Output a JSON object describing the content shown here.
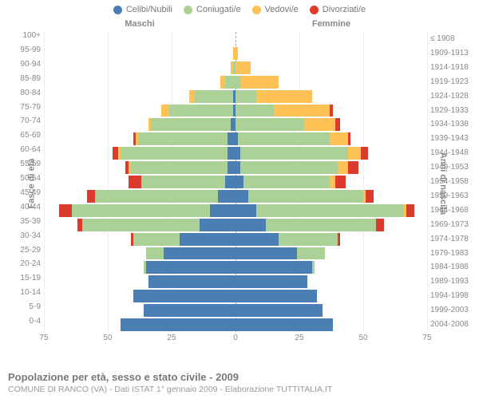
{
  "chart": {
    "type": "population-pyramid",
    "x_max": 75,
    "x_ticks": [
      75,
      50,
      25,
      0,
      25,
      50,
      75
    ],
    "legend": [
      {
        "label": "Celibi/Nubili",
        "color": "#4b7fb3"
      },
      {
        "label": "Coniugati/e",
        "color": "#abd197"
      },
      {
        "label": "Vedovi/e",
        "color": "#fdc155"
      },
      {
        "label": "Divorziati/e",
        "color": "#dd3a2e"
      }
    ],
    "male_label": "Maschi",
    "female_label": "Femmine",
    "y_left_title": "Fasce di età",
    "y_right_title": "Anni di nascita",
    "grid_color": "#e0e0e0",
    "center_line_color": "#aaaaaa",
    "label_color": "#888888",
    "label_fontsize": 10,
    "rows": [
      {
        "age": "100+",
        "birth": "≤ 1908",
        "m": [
          0,
          0,
          0,
          0
        ],
        "f": [
          0,
          0,
          0,
          0
        ]
      },
      {
        "age": "95-99",
        "birth": "1909-1913",
        "m": [
          0,
          0,
          1,
          0
        ],
        "f": [
          0,
          0,
          1,
          0
        ]
      },
      {
        "age": "90-94",
        "birth": "1914-1918",
        "m": [
          0,
          1,
          1,
          0
        ],
        "f": [
          0,
          0,
          6,
          0
        ]
      },
      {
        "age": "85-89",
        "birth": "1919-1923",
        "m": [
          0,
          4,
          2,
          0
        ],
        "f": [
          0,
          2,
          15,
          0
        ]
      },
      {
        "age": "80-84",
        "birth": "1924-1928",
        "m": [
          1,
          15,
          2,
          0
        ],
        "f": [
          0,
          8,
          22,
          0
        ]
      },
      {
        "age": "75-79",
        "birth": "1929-1933",
        "m": [
          1,
          25,
          3,
          0
        ],
        "f": [
          0,
          15,
          22,
          1
        ]
      },
      {
        "age": "70-74",
        "birth": "1934-1938",
        "m": [
          2,
          31,
          1,
          0
        ],
        "f": [
          0,
          27,
          12,
          2
        ]
      },
      {
        "age": "65-69",
        "birth": "1939-1943",
        "m": [
          3,
          35,
          1,
          1
        ],
        "f": [
          1,
          36,
          7,
          1
        ]
      },
      {
        "age": "60-64",
        "birth": "1944-1948",
        "m": [
          3,
          42,
          1,
          2
        ],
        "f": [
          2,
          42,
          5,
          3
        ]
      },
      {
        "age": "55-59",
        "birth": "1949-1953",
        "m": [
          3,
          38,
          1,
          1
        ],
        "f": [
          2,
          38,
          4,
          4
        ]
      },
      {
        "age": "50-54",
        "birth": "1954-1958",
        "m": [
          4,
          33,
          0,
          5
        ],
        "f": [
          3,
          34,
          2,
          4
        ]
      },
      {
        "age": "45-49",
        "birth": "1959-1963",
        "m": [
          7,
          48,
          0,
          3
        ],
        "f": [
          5,
          45,
          1,
          3
        ]
      },
      {
        "age": "40-44",
        "birth": "1964-1968",
        "m": [
          10,
          54,
          0,
          5
        ],
        "f": [
          8,
          58,
          1,
          3
        ]
      },
      {
        "age": "35-39",
        "birth": "1969-1973",
        "m": [
          14,
          46,
          0,
          2
        ],
        "f": [
          12,
          43,
          0,
          3
        ]
      },
      {
        "age": "30-34",
        "birth": "1974-1978",
        "m": [
          22,
          18,
          0,
          1
        ],
        "f": [
          17,
          23,
          0,
          1
        ]
      },
      {
        "age": "25-29",
        "birth": "1979-1983",
        "m": [
          28,
          7,
          0,
          0
        ],
        "f": [
          24,
          11,
          0,
          0
        ]
      },
      {
        "age": "20-24",
        "birth": "1984-1988",
        "m": [
          35,
          1,
          0,
          0
        ],
        "f": [
          30,
          1,
          0,
          0
        ]
      },
      {
        "age": "15-19",
        "birth": "1989-1993",
        "m": [
          34,
          0,
          0,
          0
        ],
        "f": [
          28,
          0,
          0,
          0
        ]
      },
      {
        "age": "10-14",
        "birth": "1994-1998",
        "m": [
          40,
          0,
          0,
          0
        ],
        "f": [
          32,
          0,
          0,
          0
        ]
      },
      {
        "age": "5-9",
        "birth": "1999-2003",
        "m": [
          36,
          0,
          0,
          0
        ],
        "f": [
          34,
          0,
          0,
          0
        ]
      },
      {
        "age": "0-4",
        "birth": "2004-2008",
        "m": [
          45,
          0,
          0,
          0
        ],
        "f": [
          38,
          0,
          0,
          0
        ]
      }
    ]
  },
  "footer": {
    "title": "Popolazione per età, sesso e stato civile - 2009",
    "subtitle": "COMUNE DI RANCO (VA) - Dati ISTAT 1° gennaio 2009 - Elaborazione TUTTITALIA.IT"
  }
}
